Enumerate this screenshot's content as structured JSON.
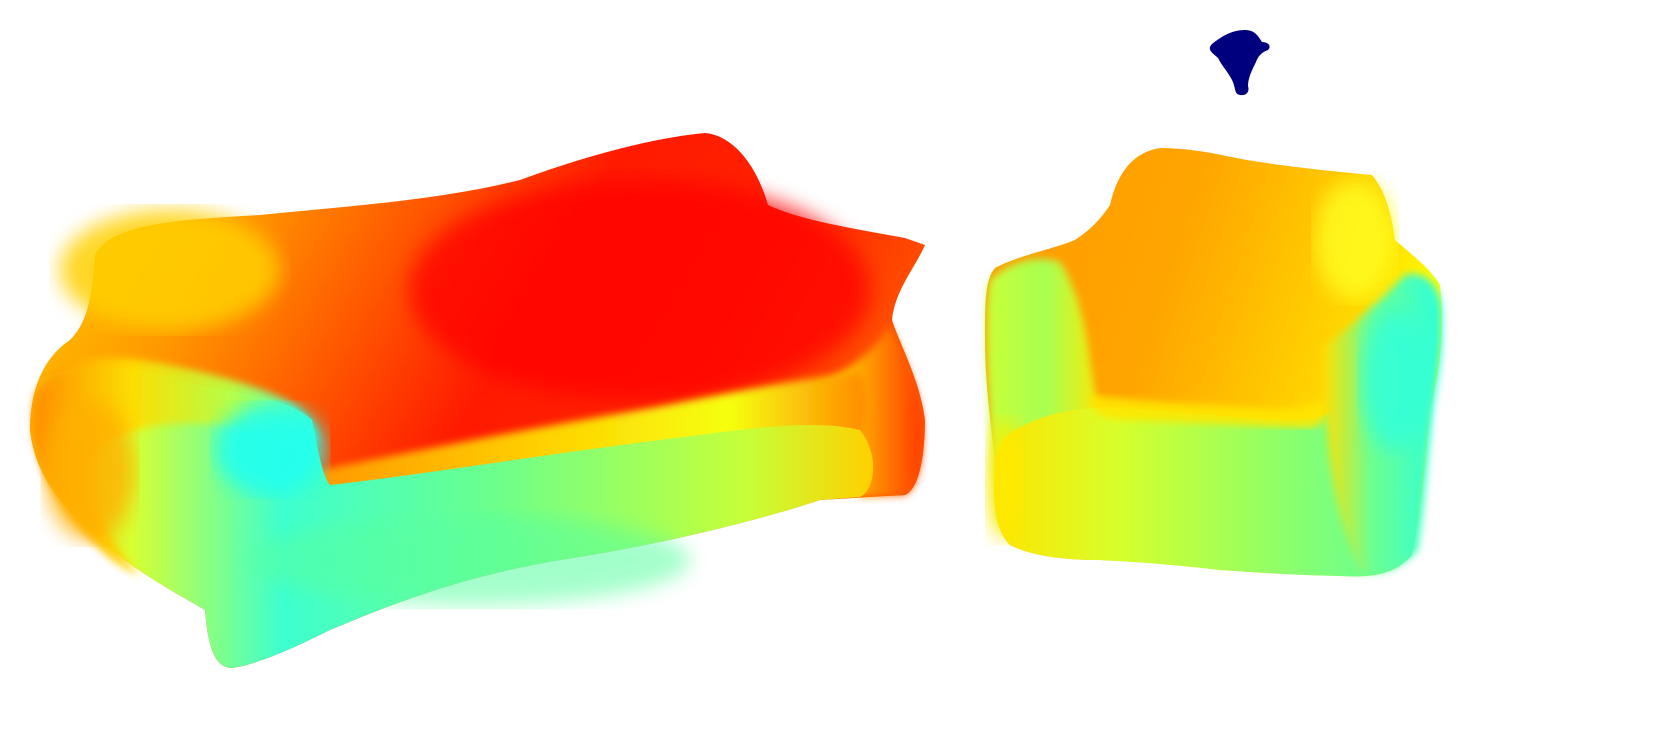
{
  "scene": {
    "description_visible_text": "",
    "background_color": "#ffffff",
    "colormap": "jet",
    "objects": [
      {
        "name": "sofa",
        "kind": "point-cloud-depth-map"
      },
      {
        "name": "armchair",
        "kind": "point-cloud-depth-map"
      },
      {
        "name": "lamp-blob",
        "kind": "point-cloud-depth-map"
      }
    ],
    "colors": {
      "near": "#00f5ff",
      "mid_near": "#7dff7a",
      "mid": "#ffff00",
      "mid_far": "#ff9900",
      "far": "#ff0000",
      "farthest": "#00007f"
    }
  }
}
